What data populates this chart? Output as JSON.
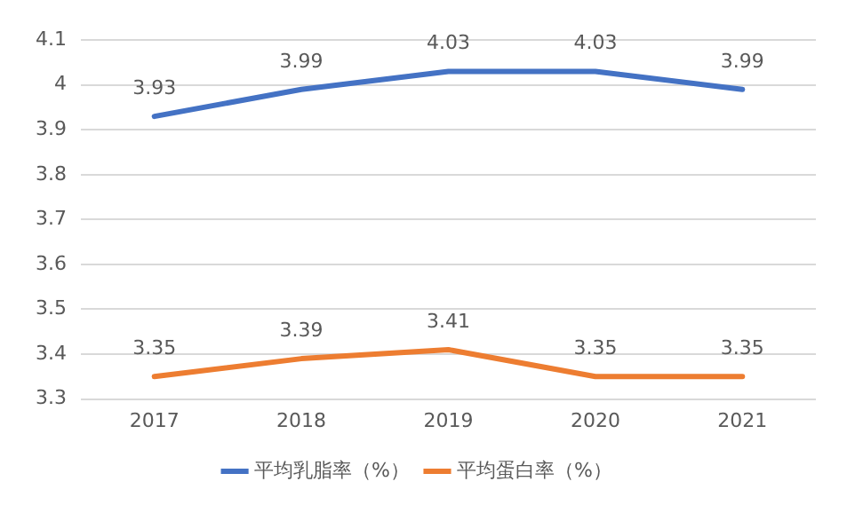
{
  "chart_data": {
    "type": "line",
    "categories": [
      "2017",
      "2018",
      "2019",
      "2020",
      "2021"
    ],
    "series": [
      {
        "name": "平均乳脂率（%）",
        "color": "#4472c4",
        "values": [
          3.93,
          3.99,
          4.03,
          4.03,
          3.99
        ]
      },
      {
        "name": "平均蛋白率（%）",
        "color": "#ed7d31",
        "values": [
          3.35,
          3.39,
          3.41,
          3.35,
          3.35
        ]
      }
    ],
    "ylim": [
      3.3,
      4.1
    ],
    "yticks": [
      3.3,
      3.4,
      3.5,
      3.6,
      3.7,
      3.8,
      3.9,
      4,
      4.1
    ],
    "grid": "y",
    "legend": "bottom",
    "data_labels": true,
    "marker": "none",
    "line_style": "solid"
  }
}
